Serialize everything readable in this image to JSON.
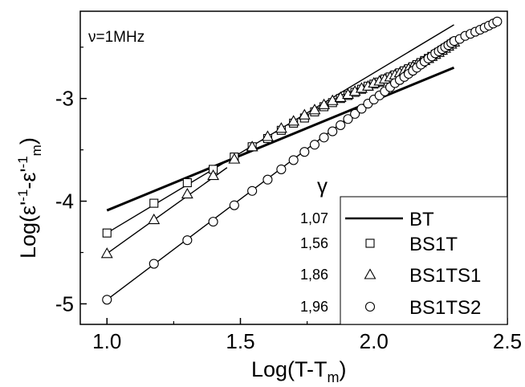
{
  "chart_data": {
    "type": "scatter",
    "annotation": "ν=1MHz",
    "xlabel": {
      "main": "Log(T-T",
      "sub": "m",
      "close": ")"
    },
    "ylabel": {
      "pre": "Log(ε'",
      "sup1": "-1",
      "mid": "-ε'",
      "sup2": "-1",
      "sub": "m",
      "close": ")"
    },
    "xlim": [
      0.9,
      2.5
    ],
    "ylim": [
      -5.2,
      -2.15
    ],
    "xticks": [
      1.0,
      1.5,
      2.0,
      2.5
    ],
    "xtick_labels": [
      "1.0",
      "1.5",
      "2.0",
      "2.5"
    ],
    "yticks": [
      -3,
      -4,
      -5
    ],
    "ytick_labels": [
      "-3",
      "-4",
      "-5"
    ],
    "legend_header": "γ",
    "legend_position": "bottom-right",
    "series": [
      {
        "name": "BT",
        "gamma": "1,07",
        "marker": "line",
        "fit": [
          1.0,
          -4.09,
          1.07
        ],
        "fit_range": [
          1.0,
          2.3
        ],
        "points": []
      },
      {
        "name": "BS1T",
        "gamma": "1,56",
        "marker": "square",
        "fit": [
          1.0,
          -4.31,
          1.56
        ],
        "fit_range": [
          1.0,
          2.3
        ],
        "points": [
          [
            1.0,
            -4.31
          ],
          [
            1.176,
            -4.02
          ],
          [
            1.301,
            -3.82
          ],
          [
            1.398,
            -3.69
          ],
          [
            1.477,
            -3.57
          ],
          [
            1.544,
            -3.47
          ],
          [
            1.602,
            -3.39
          ],
          [
            1.653,
            -3.31
          ],
          [
            1.699,
            -3.24
          ],
          [
            1.74,
            -3.19
          ],
          [
            1.778,
            -3.13
          ],
          [
            1.813,
            -3.08
          ],
          [
            1.845,
            -3.04
          ],
          [
            1.875,
            -3.0
          ],
          [
            1.903,
            -2.97
          ],
          [
            1.929,
            -2.94
          ],
          [
            1.954,
            -2.91
          ],
          [
            1.978,
            -2.88
          ],
          [
            2.0,
            -2.86
          ],
          [
            2.021,
            -2.84
          ],
          [
            2.041,
            -2.81
          ],
          [
            2.061,
            -2.79
          ],
          [
            2.079,
            -2.77
          ],
          [
            2.097,
            -2.75
          ],
          [
            2.114,
            -2.73
          ],
          [
            2.13,
            -2.71
          ],
          [
            2.146,
            -2.69
          ],
          [
            2.161,
            -2.67
          ],
          [
            2.176,
            -2.65
          ],
          [
            2.19,
            -2.63
          ],
          [
            2.204,
            -2.61
          ],
          [
            2.217,
            -2.59
          ],
          [
            2.23,
            -2.57
          ],
          [
            2.243,
            -2.55
          ],
          [
            2.255,
            -2.53
          ],
          [
            2.267,
            -2.51
          ],
          [
            2.279,
            -2.49
          ],
          [
            2.29,
            -2.47
          ],
          [
            2.301,
            -2.45
          ]
        ]
      },
      {
        "name": "BS1TS1",
        "gamma": "1,86",
        "marker": "triangle",
        "fit": [
          1.0,
          -4.51,
          1.86
        ],
        "fit_range": [
          1.0,
          1.45
        ],
        "points": [
          [
            1.0,
            -4.51
          ],
          [
            1.176,
            -4.18
          ],
          [
            1.301,
            -3.93
          ],
          [
            1.398,
            -3.75
          ],
          [
            1.477,
            -3.59
          ],
          [
            1.544,
            -3.47
          ],
          [
            1.602,
            -3.37
          ],
          [
            1.653,
            -3.29
          ],
          [
            1.699,
            -3.22
          ],
          [
            1.74,
            -3.16
          ],
          [
            1.778,
            -3.11
          ],
          [
            1.813,
            -3.06
          ],
          [
            1.845,
            -3.02
          ],
          [
            1.875,
            -2.99
          ],
          [
            1.903,
            -2.96
          ],
          [
            1.929,
            -2.93
          ],
          [
            1.954,
            -2.9
          ],
          [
            1.978,
            -2.88
          ],
          [
            2.0,
            -2.85
          ],
          [
            2.021,
            -2.83
          ],
          [
            2.041,
            -2.81
          ],
          [
            2.061,
            -2.79
          ],
          [
            2.079,
            -2.77
          ],
          [
            2.097,
            -2.75
          ],
          [
            2.114,
            -2.73
          ],
          [
            2.13,
            -2.71
          ],
          [
            2.146,
            -2.69
          ],
          [
            2.161,
            -2.67
          ],
          [
            2.176,
            -2.65
          ],
          [
            2.19,
            -2.63
          ],
          [
            2.204,
            -2.61
          ],
          [
            2.217,
            -2.59
          ],
          [
            2.23,
            -2.57
          ],
          [
            2.243,
            -2.55
          ],
          [
            2.255,
            -2.53
          ],
          [
            2.267,
            -2.51
          ],
          [
            2.279,
            -2.49
          ],
          [
            2.29,
            -2.47
          ],
          [
            2.301,
            -2.45
          ]
        ]
      },
      {
        "name": "BS1TS2",
        "gamma": "1,96",
        "marker": "circle",
        "fit": [
          1.0,
          -4.96,
          1.96
        ],
        "fit_range": [
          1.0,
          1.95
        ],
        "points": [
          [
            1.0,
            -4.96
          ],
          [
            1.176,
            -4.61
          ],
          [
            1.301,
            -4.38
          ],
          [
            1.398,
            -4.2
          ],
          [
            1.477,
            -4.04
          ],
          [
            1.544,
            -3.9
          ],
          [
            1.602,
            -3.79
          ],
          [
            1.653,
            -3.69
          ],
          [
            1.699,
            -3.6
          ],
          [
            1.74,
            -3.52
          ],
          [
            1.778,
            -3.45
          ],
          [
            1.813,
            -3.38
          ],
          [
            1.845,
            -3.32
          ],
          [
            1.875,
            -3.26
          ],
          [
            1.903,
            -3.2
          ],
          [
            1.929,
            -3.15
          ],
          [
            1.954,
            -3.1
          ],
          [
            1.978,
            -3.05
          ],
          [
            2.0,
            -3.01
          ],
          [
            2.021,
            -2.97
          ],
          [
            2.041,
            -2.93
          ],
          [
            2.061,
            -2.89
          ],
          [
            2.079,
            -2.85
          ],
          [
            2.097,
            -2.82
          ],
          [
            2.114,
            -2.79
          ],
          [
            2.13,
            -2.76
          ],
          [
            2.146,
            -2.73
          ],
          [
            2.161,
            -2.7
          ],
          [
            2.176,
            -2.67
          ],
          [
            2.19,
            -2.64
          ],
          [
            2.204,
            -2.61
          ],
          [
            2.217,
            -2.59
          ],
          [
            2.23,
            -2.56
          ],
          [
            2.243,
            -2.54
          ],
          [
            2.255,
            -2.52
          ],
          [
            2.267,
            -2.5
          ],
          [
            2.279,
            -2.48
          ],
          [
            2.29,
            -2.46
          ],
          [
            2.301,
            -2.44
          ],
          [
            2.322,
            -2.42
          ],
          [
            2.342,
            -2.39
          ],
          [
            2.362,
            -2.37
          ],
          [
            2.38,
            -2.35
          ],
          [
            2.398,
            -2.33
          ],
          [
            2.415,
            -2.31
          ],
          [
            2.431,
            -2.29
          ],
          [
            2.447,
            -2.27
          ],
          [
            2.462,
            -2.25
          ]
        ]
      }
    ]
  }
}
